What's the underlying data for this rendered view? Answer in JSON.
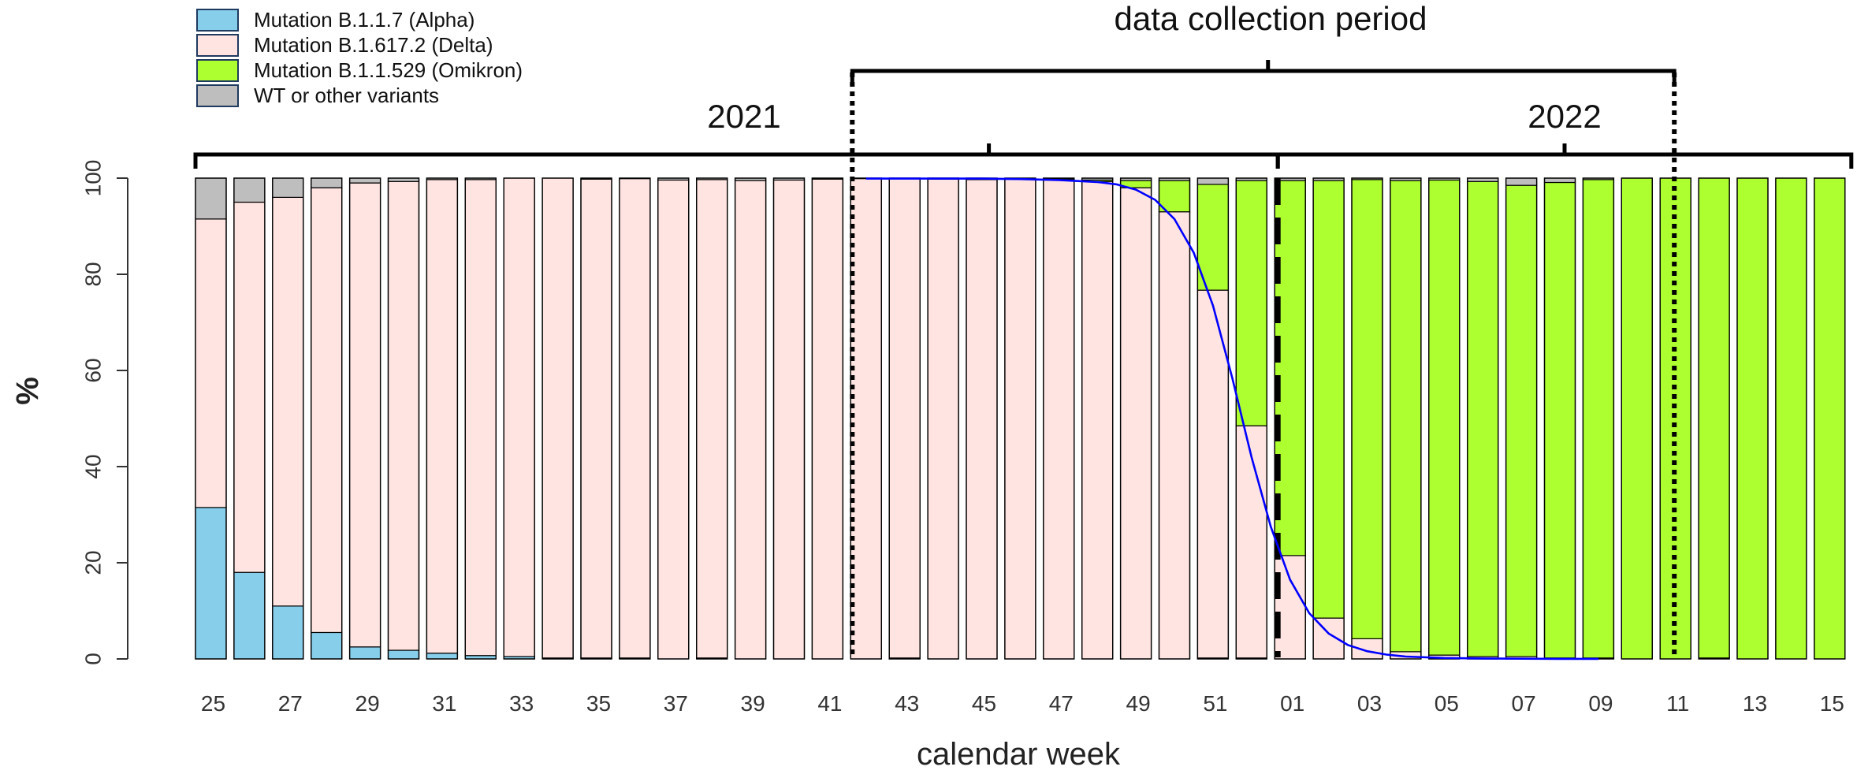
{
  "chart_data": {
    "type": "bar",
    "subtype": "stacked-100-percent",
    "xlabel": "calendar week",
    "ylabel": "%",
    "ylim": [
      0,
      100
    ],
    "y_ticks": [
      0,
      20,
      40,
      60,
      80,
      100
    ],
    "categories": [
      "25",
      "26",
      "27",
      "28",
      "29",
      "30",
      "31",
      "32",
      "33",
      "34",
      "35",
      "36",
      "37",
      "38",
      "39",
      "40",
      "41",
      "42",
      "43",
      "44",
      "45",
      "46",
      "47",
      "48",
      "49",
      "50",
      "51",
      "52",
      "01",
      "02",
      "03",
      "04",
      "05",
      "06",
      "07",
      "08",
      "09",
      "10",
      "11",
      "12",
      "13",
      "14",
      "15"
    ],
    "x_tick_labels": [
      "25",
      "27",
      "29",
      "31",
      "33",
      "35",
      "37",
      "39",
      "41",
      "43",
      "45",
      "47",
      "49",
      "51",
      "01",
      "03",
      "05",
      "07",
      "09",
      "11",
      "13",
      "15"
    ],
    "series": [
      {
        "name": "Mutation B.1.1.7 (Alpha)",
        "color": "#87ceeb",
        "values": [
          31.5,
          18.0,
          11.0,
          5.5,
          2.5,
          1.8,
          1.2,
          0.7,
          0.5,
          0.2,
          0.2,
          0.2,
          0,
          0.2,
          0,
          0,
          0,
          0,
          0.2,
          0,
          0,
          0,
          0,
          0,
          0,
          0,
          0.2,
          0.2,
          0,
          0,
          0,
          0,
          0,
          0,
          0,
          0,
          0,
          0,
          0,
          0.2,
          0,
          0,
          0
        ]
      },
      {
        "name": "Mutation B.1.617.2 (Delta)",
        "color": "#ffe4e1",
        "values": [
          60.0,
          77.0,
          85.0,
          92.5,
          96.5,
          97.5,
          98.5,
          99.0,
          99.5,
          99.8,
          99.6,
          99.7,
          99.6,
          99.5,
          99.5,
          99.6,
          99.8,
          99.9,
          99.8,
          99.8,
          99.7,
          99.8,
          99.8,
          99.3,
          98.0,
          93.0,
          76.5,
          48.3,
          21.5,
          8.5,
          4.2,
          1.5,
          0.8,
          0.5,
          0.5,
          0.2,
          0.2,
          0,
          0,
          0,
          0,
          0,
          0
        ]
      },
      {
        "name": "Mutation B.1.1.529 (Omikron)",
        "color": "#adff2f",
        "values": [
          0,
          0,
          0,
          0,
          0,
          0,
          0,
          0,
          0,
          0,
          0,
          0,
          0,
          0,
          0,
          0,
          0,
          0,
          0,
          0,
          0,
          0,
          0,
          0.3,
          1.5,
          6.5,
          22.0,
          51.0,
          78.0,
          91.0,
          95.5,
          98.0,
          98.8,
          98.8,
          98.0,
          98.9,
          99.5,
          100,
          100,
          99.8,
          100,
          100,
          100
        ]
      },
      {
        "name": "WT or other variants",
        "color": "#bebebe",
        "values": [
          8.5,
          5.0,
          4.0,
          2.0,
          1.0,
          0.7,
          0.3,
          0.3,
          0,
          0,
          0.2,
          0.1,
          0.4,
          0.3,
          0.5,
          0.4,
          0.2,
          0.1,
          0,
          0.2,
          0.3,
          0.2,
          0.2,
          0.4,
          0.5,
          0.5,
          1.3,
          0.5,
          0.5,
          0.5,
          0.3,
          0.5,
          0.4,
          0.7,
          1.5,
          0.9,
          0.3,
          0,
          0,
          0,
          0,
          0,
          0
        ]
      }
    ],
    "fitted_curve": {
      "color": "#0000ff",
      "x": [
        42,
        43,
        44,
        45,
        46,
        47,
        48,
        48.5,
        49,
        49.5,
        50,
        50.5,
        51,
        51.5,
        52,
        52.5,
        53,
        53.5,
        54,
        54.5,
        55,
        55.5,
        56,
        57,
        58,
        59,
        60,
        61
      ],
      "y": [
        99.9,
        99.9,
        99.9,
        99.9,
        99.8,
        99.6,
        99.2,
        98.7,
        97.6,
        95.5,
        91.5,
        84.5,
        73.5,
        58.5,
        42.0,
        27.5,
        16.5,
        9.5,
        5.3,
        2.9,
        1.6,
        0.9,
        0.5,
        0.2,
        0.1,
        0.05,
        0.02,
        0.01
      ]
    },
    "annotations": {
      "year_2021": "2021",
      "year_2022": "2022",
      "period_label": "data collection period",
      "period_start_week": 42,
      "period_end_week": 11,
      "year_boundary_week": "01"
    },
    "legend_position": "top-left",
    "grid": false
  }
}
